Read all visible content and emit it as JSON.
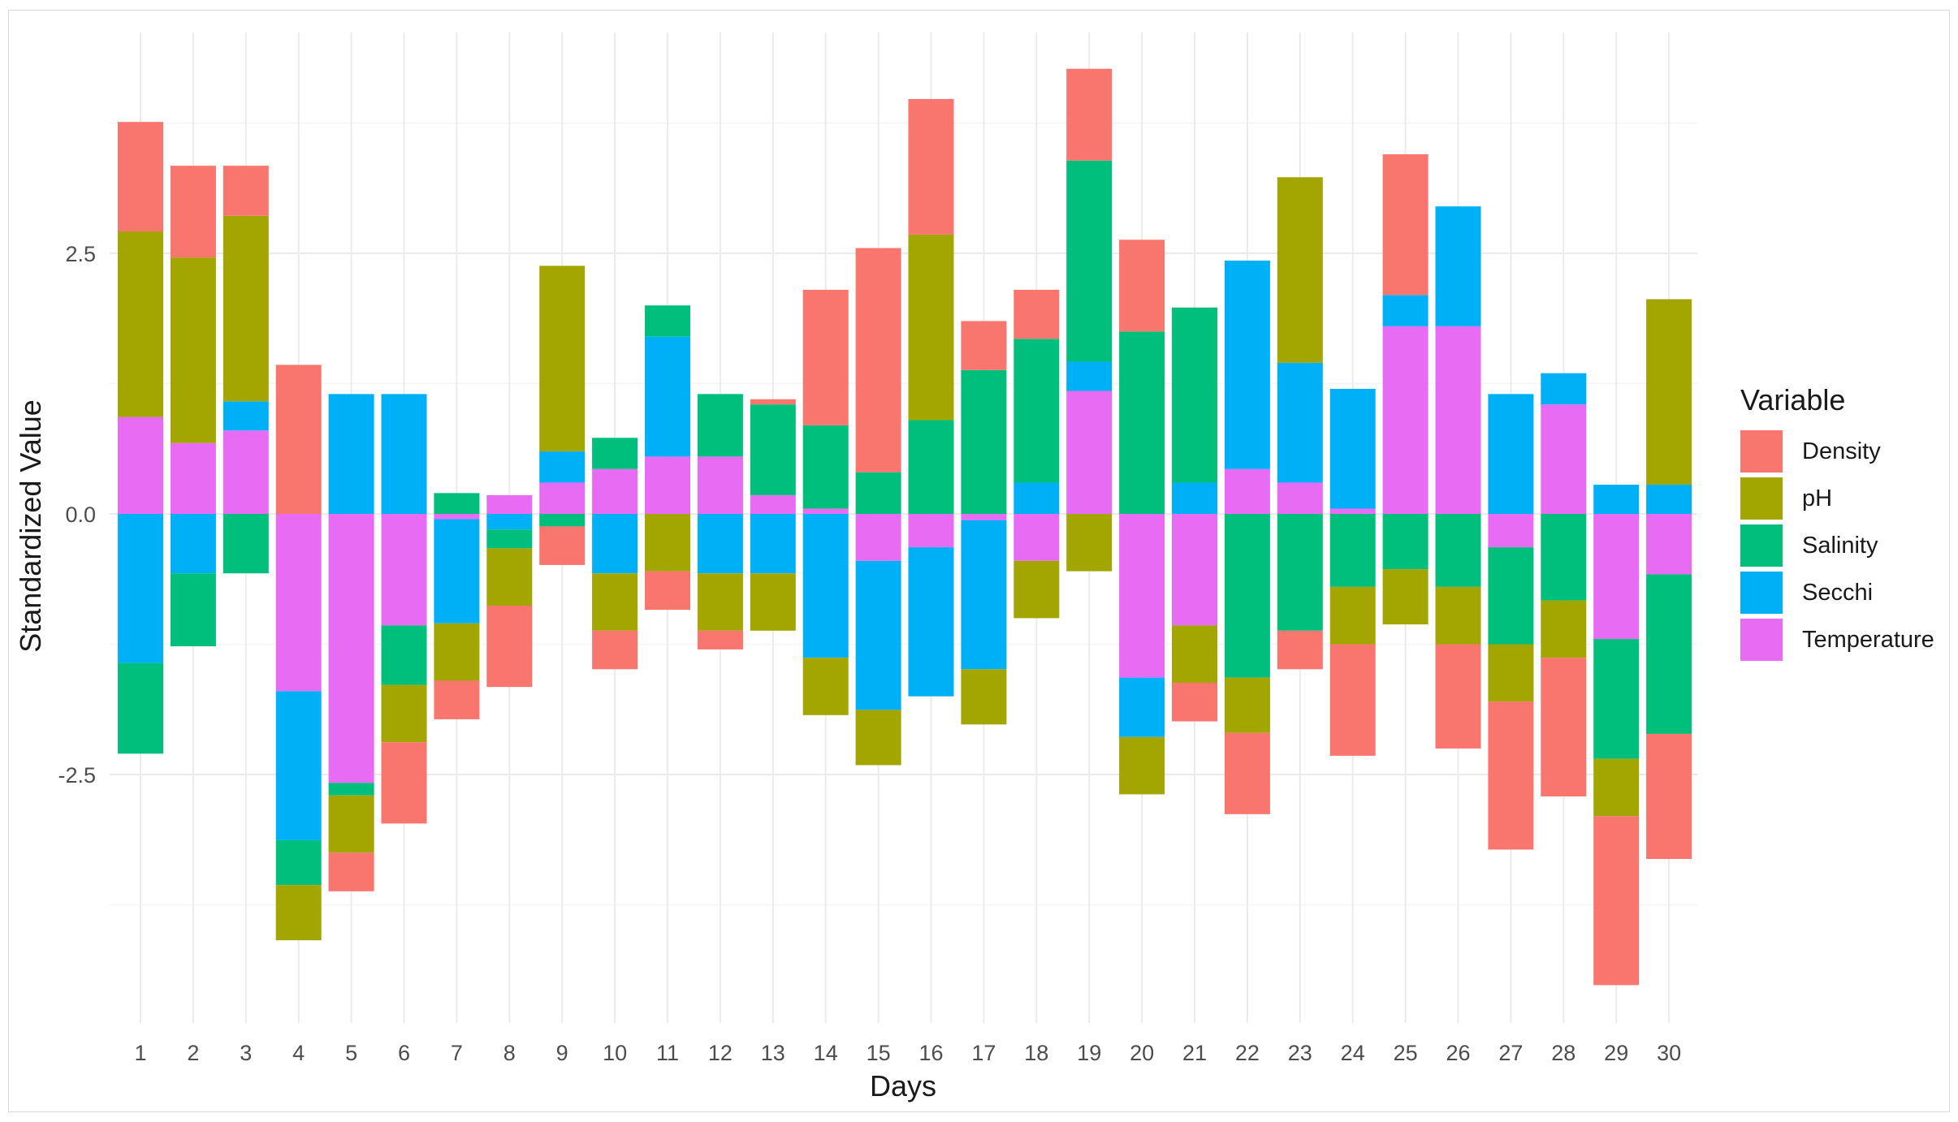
{
  "chart_data": {
    "type": "bar",
    "stacked": true,
    "xlabel": "Days",
    "ylabel": "Standardized Value",
    "ylim": [
      -4.9,
      4.7
    ],
    "yticks": [
      -2.5,
      0.0,
      2.5
    ],
    "ytick_labels": [
      "-2.5",
      "0.0",
      "2.5"
    ],
    "grid": true,
    "legend_title": "Variable",
    "legend_position": "right",
    "categories": [
      "1",
      "2",
      "3",
      "4",
      "5",
      "6",
      "7",
      "8",
      "9",
      "10",
      "11",
      "12",
      "13",
      "14",
      "15",
      "16",
      "17",
      "18",
      "19",
      "20",
      "21",
      "22",
      "23",
      "24",
      "25",
      "26",
      "27",
      "28",
      "29",
      "30"
    ],
    "stack_order": [
      "Temperature",
      "Secchi",
      "Salinity",
      "pH",
      "Density"
    ],
    "legend_order": [
      "Density",
      "pH",
      "Salinity",
      "Secchi",
      "Temperature"
    ],
    "colors": {
      "Density": "#F8766D",
      "pH": "#A3A500",
      "Salinity": "#00BF7D",
      "Secchi": "#00B0F6",
      "Temperature": "#E76BF3"
    },
    "series": [
      {
        "name": "Temperature",
        "values": [
          0.93,
          0.68,
          0.8,
          -1.7,
          -2.58,
          -1.07,
          -0.05,
          0.18,
          0.3,
          0.43,
          0.55,
          0.55,
          0.18,
          0.05,
          -0.45,
          -0.32,
          -0.06,
          -0.45,
          1.18,
          -1.57,
          -1.07,
          0.43,
          0.3,
          0.05,
          1.8,
          1.8,
          -0.32,
          1.05,
          -1.2,
          -0.58
        ]
      },
      {
        "name": "Secchi",
        "values": [
          -1.43,
          -0.57,
          0.28,
          -1.43,
          1.15,
          1.15,
          -1.0,
          -0.15,
          0.3,
          -0.57,
          1.15,
          -0.57,
          -0.57,
          -1.38,
          -1.43,
          -1.43,
          -1.43,
          0.3,
          0.28,
          -0.57,
          0.3,
          2.0,
          1.15,
          1.15,
          0.3,
          1.15,
          1.15,
          0.3,
          0.28,
          0.28
        ]
      },
      {
        "name": "Salinity",
        "values": [
          -0.87,
          -0.7,
          -0.57,
          -0.43,
          -0.12,
          -0.57,
          0.2,
          -0.18,
          -0.12,
          0.3,
          0.3,
          0.6,
          0.87,
          0.8,
          0.4,
          0.9,
          1.38,
          1.38,
          1.93,
          1.75,
          1.68,
          -1.57,
          -1.12,
          -0.7,
          -0.53,
          -0.7,
          -0.93,
          -0.83,
          -1.15,
          -1.53
        ]
      },
      {
        "name": "pH",
        "values": [
          1.78,
          1.78,
          1.78,
          -0.53,
          -0.55,
          -0.55,
          -0.55,
          -0.55,
          1.78,
          -0.55,
          -0.55,
          -0.55,
          -0.55,
          -0.55,
          -0.53,
          1.78,
          -0.53,
          -0.55,
          -0.55,
          -0.55,
          -0.55,
          -0.53,
          1.78,
          -0.55,
          -0.53,
          -0.55,
          -0.55,
          -0.55,
          -0.55,
          1.78
        ]
      },
      {
        "name": "Density",
        "values": [
          1.05,
          0.88,
          0.48,
          1.43,
          -0.37,
          -0.78,
          -0.37,
          -0.78,
          -0.37,
          -0.37,
          -0.37,
          -0.18,
          0.05,
          1.3,
          2.15,
          1.3,
          0.47,
          0.47,
          0.88,
          0.88,
          -0.37,
          -0.78,
          -0.37,
          -1.07,
          1.35,
          -1.0,
          -1.42,
          -1.33,
          -1.62,
          -1.2
        ]
      }
    ]
  }
}
